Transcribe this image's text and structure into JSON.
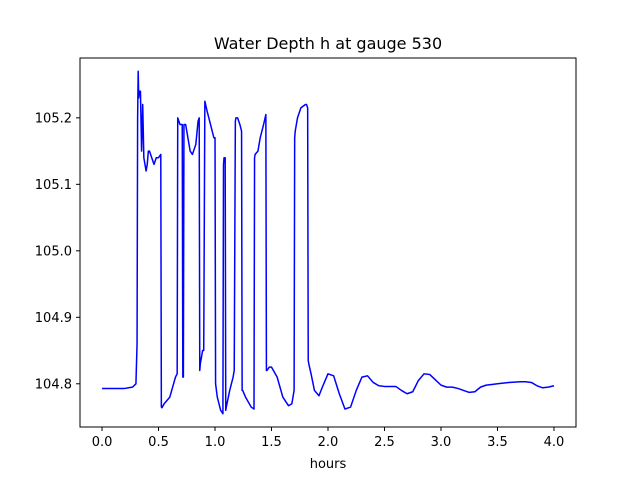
{
  "chart_data": {
    "type": "line",
    "title": "Water Depth h at gauge 530",
    "xlabel": "hours",
    "ylabel": "",
    "xlim": [
      -0.195,
      4.195
    ],
    "ylim": [
      104.735,
      105.29
    ],
    "x_ticks": [
      0.0,
      0.5,
      1.0,
      1.5,
      2.0,
      2.5,
      3.0,
      3.5,
      4.0
    ],
    "x_tick_labels": [
      "0.0",
      "0.5",
      "1.0",
      "1.5",
      "2.0",
      "2.5",
      "3.0",
      "3.5",
      "4.0"
    ],
    "y_ticks": [
      104.8,
      104.9,
      105.0,
      105.1,
      105.2
    ],
    "y_tick_labels": [
      "104.8",
      "104.9",
      "105.0",
      "105.1",
      "105.2"
    ],
    "grid": false,
    "series": [
      {
        "color": "#0000ff",
        "x": [
          0.0,
          0.2,
          0.27,
          0.3,
          0.31,
          0.315,
          0.32,
          0.325,
          0.33,
          0.34,
          0.35,
          0.36,
          0.37,
          0.38,
          0.39,
          0.4,
          0.41,
          0.42,
          0.44,
          0.46,
          0.48,
          0.5,
          0.52,
          0.525,
          0.53,
          0.55,
          0.6,
          0.65,
          0.665,
          0.67,
          0.69,
          0.7,
          0.71,
          0.715,
          0.72,
          0.725,
          0.73,
          0.735,
          0.74,
          0.76,
          0.78,
          0.8,
          0.83,
          0.85,
          0.86,
          0.865,
          0.87,
          0.89,
          0.9,
          0.91,
          0.93,
          0.96,
          0.99,
          1.0,
          1.005,
          1.02,
          1.05,
          1.07,
          1.075,
          1.08,
          1.09,
          1.095,
          1.1,
          1.13,
          1.16,
          1.17,
          1.18,
          1.185,
          1.2,
          1.22,
          1.235,
          1.24,
          1.245,
          1.27,
          1.32,
          1.345,
          1.35,
          1.355,
          1.38,
          1.4,
          1.43,
          1.45,
          1.455,
          1.46,
          1.48,
          1.5,
          1.55,
          1.6,
          1.65,
          1.68,
          1.7,
          1.705,
          1.71,
          1.73,
          1.76,
          1.8,
          1.81,
          1.82,
          1.825,
          1.83,
          1.85,
          1.88,
          1.92,
          1.95,
          2.0,
          2.05,
          2.1,
          2.15,
          2.2,
          2.25,
          2.3,
          2.35,
          2.4,
          2.45,
          2.5,
          2.55,
          2.6,
          2.65,
          2.7,
          2.75,
          2.8,
          2.85,
          2.9,
          2.95,
          3.0,
          3.05,
          3.1,
          3.15,
          3.2,
          3.25,
          3.3,
          3.35,
          3.4,
          3.45,
          3.5,
          3.6,
          3.7,
          3.75,
          3.8,
          3.85,
          3.9,
          3.95,
          4.0
        ],
        "y": [
          104.793,
          104.793,
          104.795,
          104.8,
          104.86,
          105.2,
          105.27,
          105.23,
          105.24,
          105.24,
          105.15,
          105.22,
          105.14,
          105.13,
          105.12,
          105.13,
          105.15,
          105.15,
          105.14,
          105.13,
          105.14,
          105.14,
          105.145,
          104.765,
          104.764,
          104.77,
          104.78,
          104.81,
          104.815,
          105.2,
          105.19,
          105.19,
          105.19,
          104.81,
          104.81,
          105.19,
          105.19,
          105.19,
          105.19,
          105.17,
          105.15,
          105.145,
          105.16,
          105.195,
          105.2,
          104.82,
          104.83,
          104.85,
          104.85,
          105.225,
          105.21,
          105.19,
          105.17,
          105.17,
          104.8,
          104.78,
          104.76,
          104.755,
          105.13,
          105.14,
          105.14,
          104.76,
          104.765,
          104.79,
          104.81,
          104.82,
          105.195,
          105.2,
          105.2,
          105.19,
          105.18,
          104.79,
          104.79,
          104.78,
          104.765,
          104.762,
          105.14,
          105.145,
          105.15,
          105.17,
          105.19,
          105.205,
          104.82,
          104.82,
          104.825,
          104.825,
          104.81,
          104.78,
          104.767,
          104.77,
          104.79,
          105.17,
          105.18,
          105.2,
          105.215,
          105.22,
          105.22,
          105.215,
          104.835,
          104.83,
          104.815,
          104.79,
          104.782,
          104.795,
          104.815,
          104.812,
          104.785,
          104.762,
          104.765,
          104.79,
          104.81,
          104.812,
          104.802,
          104.797,
          104.796,
          104.796,
          104.796,
          104.79,
          104.785,
          104.788,
          104.805,
          104.815,
          104.814,
          104.806,
          104.798,
          104.795,
          104.795,
          104.793,
          104.79,
          104.787,
          104.788,
          104.795,
          104.798,
          104.799,
          104.8,
          104.802,
          104.803,
          104.803,
          104.802,
          104.797,
          104.794,
          104.795,
          104.797
        ]
      }
    ]
  }
}
